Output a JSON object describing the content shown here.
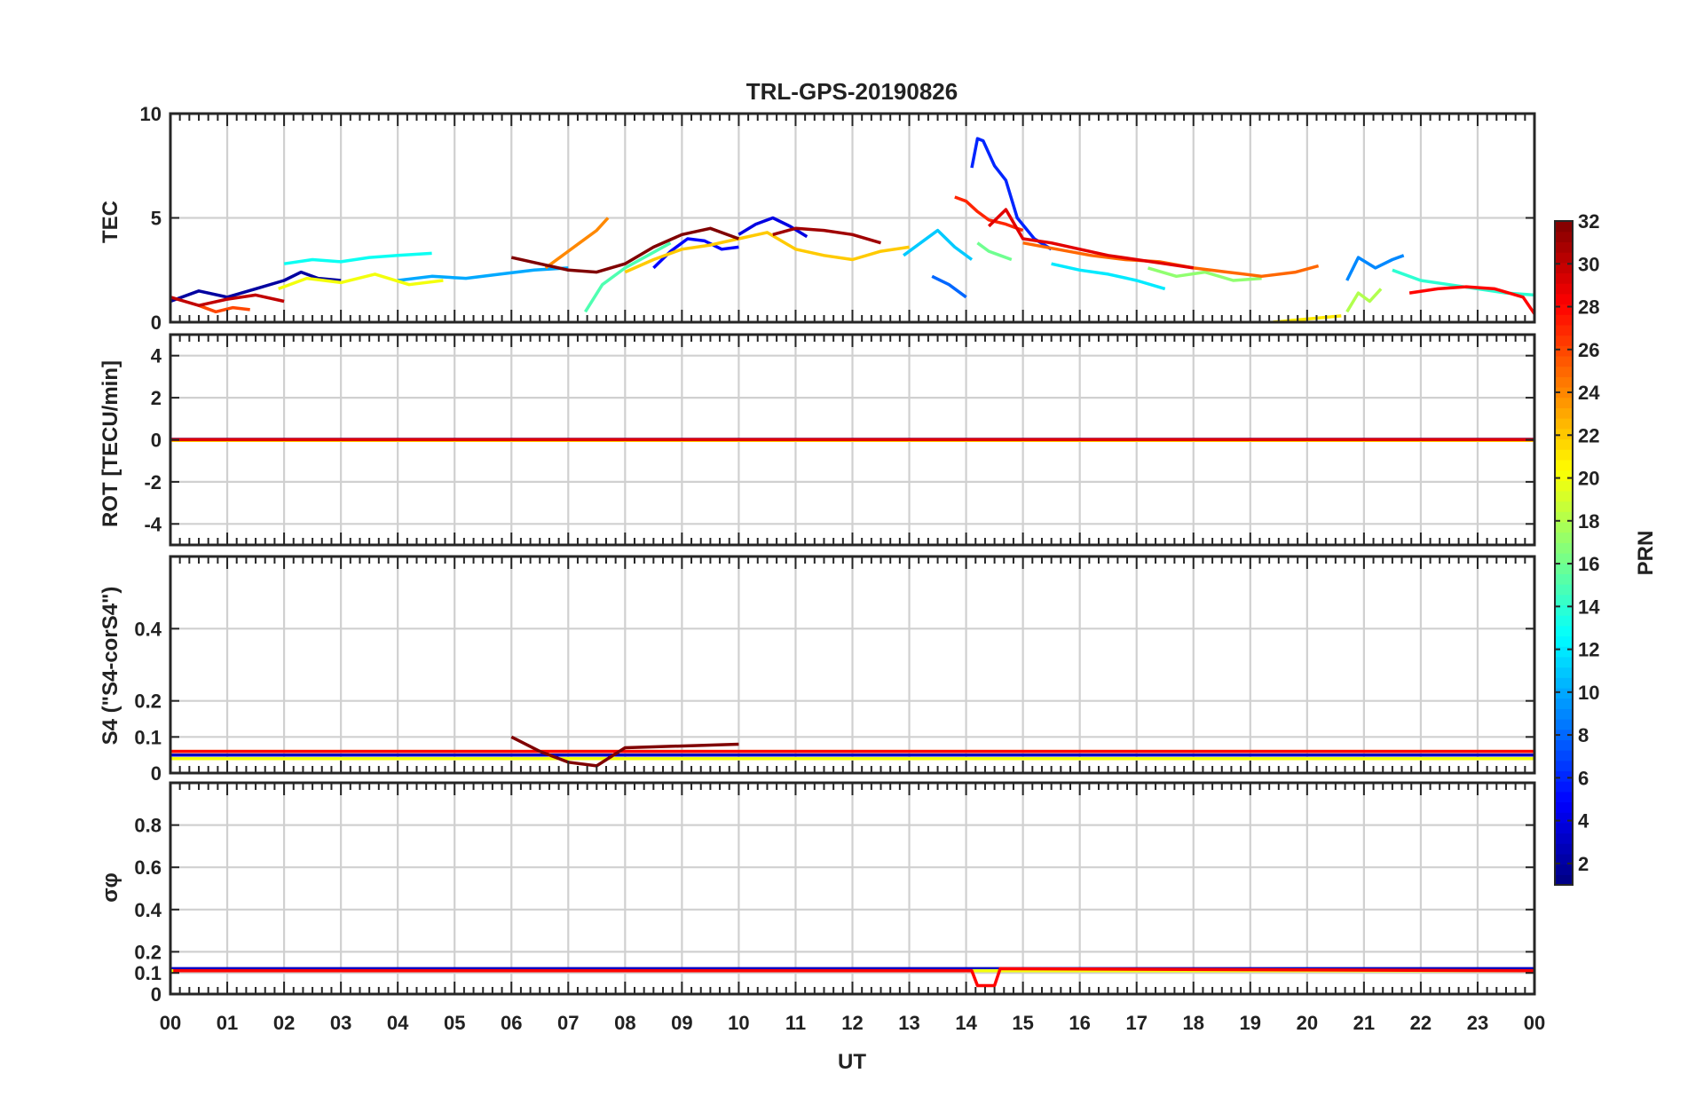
{
  "chart_data": {
    "type": "line",
    "title": "TRL-GPS-20190826",
    "xlabel": "UT",
    "x_ticks": [
      "00",
      "01",
      "02",
      "03",
      "04",
      "05",
      "06",
      "07",
      "08",
      "09",
      "10",
      "11",
      "12",
      "13",
      "14",
      "15",
      "16",
      "17",
      "18",
      "19",
      "20",
      "21",
      "22",
      "23",
      "00"
    ],
    "xlim": [
      0,
      24
    ],
    "grid": true,
    "colorbar": {
      "label": "PRN",
      "range": [
        1,
        32
      ],
      "ticks": [
        "2",
        "4",
        "6",
        "8",
        "10",
        "12",
        "14",
        "16",
        "18",
        "20",
        "22",
        "24",
        "26",
        "28",
        "30",
        "32"
      ],
      "colormap": "jet"
    },
    "panels": [
      {
        "id": "tec",
        "ylabel": "TEC",
        "ylim": [
          0,
          10
        ],
        "yticks": [
          "0",
          "5",
          "10"
        ],
        "series": [
          {
            "prn": 2,
            "x": [
              0,
              0.5,
              1,
              1.5,
              2,
              2.3,
              2.6,
              3
            ],
            "y": [
              1.0,
              1.5,
              1.2,
              1.6,
              2.0,
              2.4,
              2.1,
              2.0
            ]
          },
          {
            "prn": 4,
            "x": [
              10,
              10.3,
              10.6,
              10.9,
              11.2
            ],
            "y": [
              4.2,
              4.7,
              5.0,
              4.6,
              4.1
            ]
          },
          {
            "prn": 5,
            "x": [
              8.5,
              8.8,
              9.1,
              9.4,
              9.7,
              10.0
            ],
            "y": [
              2.6,
              3.4,
              4.0,
              3.9,
              3.5,
              3.6
            ]
          },
          {
            "prn": 6,
            "x": [
              14.1,
              14.2,
              14.3,
              14.5,
              14.7,
              14.9,
              15.2,
              15.5
            ],
            "y": [
              7.4,
              8.8,
              8.7,
              7.5,
              6.8,
              5.0,
              4.0,
              3.5
            ]
          },
          {
            "prn": 8,
            "x": [
              13.4,
              13.7,
              14.0
            ],
            "y": [
              2.2,
              1.8,
              1.2
            ]
          },
          {
            "prn": 9,
            "x": [
              20.7,
              20.9,
              21.2,
              21.5,
              21.7
            ],
            "y": [
              2.0,
              3.1,
              2.6,
              3.0,
              3.2
            ]
          },
          {
            "prn": 10,
            "x": [
              4.0,
              4.6,
              5.2,
              5.8,
              6.4,
              7.0
            ],
            "y": [
              2.0,
              2.2,
              2.1,
              2.3,
              2.5,
              2.6
            ]
          },
          {
            "prn": 11,
            "x": [
              12.9,
              13.2,
              13.5,
              13.8,
              14.1
            ],
            "y": [
              3.2,
              3.8,
              4.4,
              3.6,
              3.0
            ]
          },
          {
            "prn": 12,
            "x": [
              15.5,
              16.0,
              16.5,
              17.0,
              17.5
            ],
            "y": [
              2.8,
              2.5,
              2.3,
              2.0,
              1.6
            ]
          },
          {
            "prn": 13,
            "x": [
              2.0,
              2.5,
              3.0,
              3.5,
              4.0,
              4.6
            ],
            "y": [
              2.8,
              3.0,
              2.9,
              3.1,
              3.2,
              3.3
            ]
          },
          {
            "prn": 14,
            "x": [
              21.5,
              22.0,
              22.5,
              23.0,
              23.5,
              24.0
            ],
            "y": [
              2.5,
              2.0,
              1.8,
              1.6,
              1.4,
              1.3
            ]
          },
          {
            "prn": 15,
            "x": [
              7.3,
              7.6,
              8.0,
              8.4,
              8.8
            ],
            "y": [
              0.5,
              1.8,
              2.6,
              3.2,
              3.8
            ]
          },
          {
            "prn": 16,
            "x": [
              14.2,
              14.4,
              14.6,
              14.8
            ],
            "y": [
              3.8,
              3.4,
              3.2,
              3.0
            ]
          },
          {
            "prn": 17,
            "x": [
              17.2,
              17.7,
              18.2,
              18.7,
              19.2
            ],
            "y": [
              2.6,
              2.2,
              2.4,
              2.0,
              2.1
            ]
          },
          {
            "prn": 18,
            "x": [
              20.7,
              20.9,
              21.1,
              21.3
            ],
            "y": [
              0.5,
              1.4,
              1.0,
              1.6
            ]
          },
          {
            "prn": 20,
            "x": [
              1.9,
              2.4,
              3.0,
              3.6,
              4.2,
              4.8
            ],
            "y": [
              1.6,
              2.1,
              1.9,
              2.3,
              1.8,
              2.0
            ]
          },
          {
            "prn": 21,
            "x": [
              19.4,
              19.8,
              20.2,
              20.6
            ],
            "y": [
              0,
              0.1,
              0.2,
              0.3
            ]
          },
          {
            "prn": 22,
            "x": [
              8.0,
              8.5,
              9.0,
              9.5,
              10.0,
              10.5,
              11.0,
              11.5,
              12.0,
              12.5,
              13.0
            ],
            "y": [
              2.4,
              3.0,
              3.5,
              3.7,
              4.0,
              4.3,
              3.5,
              3.2,
              3.0,
              3.4,
              3.6
            ]
          },
          {
            "prn": 24,
            "x": [
              6.6,
              6.9,
              7.2,
              7.5,
              7.7
            ],
            "y": [
              2.6,
              3.2,
              3.8,
              4.4,
              5.0
            ]
          },
          {
            "prn": 25,
            "x": [
              15.0,
              15.6,
              16.2,
              16.8,
              17.4,
              18.0,
              18.6,
              19.2,
              19.8,
              20.2
            ],
            "y": [
              3.8,
              3.5,
              3.2,
              3.0,
              2.9,
              2.6,
              2.4,
              2.2,
              2.4,
              2.7
            ]
          },
          {
            "prn": 26,
            "x": [
              0.5,
              0.8,
              1.1,
              1.4
            ],
            "y": [
              0.8,
              0.5,
              0.7,
              0.6
            ]
          },
          {
            "prn": 27,
            "x": [
              13.8,
              14.0,
              14.2,
              14.4,
              14.7,
              15.0
            ],
            "y": [
              6.0,
              5.8,
              5.3,
              4.9,
              4.7,
              4.4
            ]
          },
          {
            "prn": 28,
            "x": [
              21.8,
              22.3,
              22.8,
              23.3,
              23.8,
              24.0
            ],
            "y": [
              1.4,
              1.6,
              1.7,
              1.6,
              1.2,
              0.4
            ]
          },
          {
            "prn": 29,
            "x": [
              14.4,
              14.7,
              15.0,
              15.5,
              16.0,
              16.5,
              17.0,
              17.5,
              18.0
            ],
            "y": [
              4.6,
              5.4,
              4.0,
              3.8,
              3.5,
              3.2,
              3.0,
              2.8,
              2.6
            ]
          },
          {
            "prn": 30,
            "x": [
              0,
              0.5,
              1.0,
              1.5,
              2.0
            ],
            "y": [
              1.2,
              0.8,
              1.1,
              1.3,
              1.0
            ]
          },
          {
            "prn": 31,
            "x": [
              10.6,
              11.0,
              11.5,
              12.0,
              12.5
            ],
            "y": [
              4.2,
              4.5,
              4.4,
              4.2,
              3.8
            ]
          },
          {
            "prn": 32,
            "x": [
              6.0,
              6.5,
              7.0,
              7.5,
              8.0,
              8.5,
              9.0,
              9.5,
              10.0
            ],
            "y": [
              3.1,
              2.8,
              2.5,
              2.4,
              2.8,
              3.6,
              4.2,
              4.5,
              4.0
            ]
          }
        ]
      },
      {
        "id": "rot",
        "ylabel": "ROT [TECU/min]",
        "ylim": [
          -5,
          5
        ],
        "yticks": [
          "-4",
          "-2",
          "0",
          "2",
          "4"
        ],
        "series": [
          {
            "prn": 3,
            "x": [
              0,
              24
            ],
            "y": [
              0.02,
              0.02
            ]
          },
          {
            "prn": 14,
            "x": [
              0,
              24
            ],
            "y": [
              0.0,
              0.0
            ]
          },
          {
            "prn": 22,
            "x": [
              0,
              24
            ],
            "y": [
              -0.03,
              -0.03
            ]
          },
          {
            "prn": 29,
            "x": [
              0,
              24
            ],
            "y": [
              0.01,
              0.01
            ]
          }
        ]
      },
      {
        "id": "s4",
        "ylabel": "S4 (\"S4-corS4\")",
        "ylim": [
          0,
          0.6
        ],
        "yticks": [
          "0",
          "0.1",
          "0.2",
          "0.4"
        ],
        "series": [
          {
            "prn": 3,
            "x": [
              0,
              17.6,
              24
            ],
            "y": [
              0.05,
              0.05,
              0.05
            ]
          },
          {
            "prn": 12,
            "x": [
              0,
              9.3,
              24
            ],
            "y": [
              0.04,
              0.04,
              0.04
            ]
          },
          {
            "prn": 20,
            "x": [
              0,
              24
            ],
            "y": [
              0.04,
              0.04
            ]
          },
          {
            "prn": 24,
            "x": [
              0,
              5.4,
              24
            ],
            "y": [
              0.06,
              0.06,
              0.06
            ]
          },
          {
            "prn": 28,
            "x": [
              0,
              13.9,
              24
            ],
            "y": [
              0.06,
              0.06,
              0.06
            ]
          },
          {
            "prn": 32,
            "x": [
              6.0,
              6.5,
              7.0,
              7.5,
              8.0,
              10.0
            ],
            "y": [
              0.1,
              0.06,
              0.03,
              0.02,
              0.07,
              0.08
            ]
          }
        ]
      },
      {
        "id": "sigma",
        "ylabel": "σφ",
        "ylim": [
          0,
          1
        ],
        "yticks": [
          "0",
          "0.1",
          "0.2",
          "0.4",
          "0.6",
          "0.8"
        ],
        "series": [
          {
            "prn": 3,
            "x": [
              0,
              14.1,
              14.5,
              24
            ],
            "y": [
              0.12,
              0.12,
              0.12,
              0.12
            ]
          },
          {
            "prn": 20,
            "x": [
              0,
              20.7,
              21.1,
              24
            ],
            "y": [
              0.11,
              0.11,
              0.11,
              0.11
            ]
          },
          {
            "prn": 28,
            "x": [
              0.05,
              14.1,
              14.2,
              14.5,
              14.6,
              24
            ],
            "y": [
              0.11,
              0.11,
              0.04,
              0.04,
              0.12,
              0.11
            ]
          }
        ]
      }
    ]
  }
}
